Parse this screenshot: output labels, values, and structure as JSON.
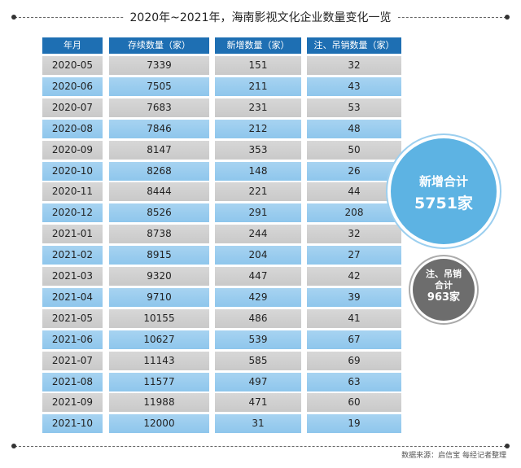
{
  "title": "2020年~2021年，海南影视文化企业数量变化一览",
  "source": "数据来源：启信宝 每经记者整理",
  "headers": {
    "month": "年月",
    "existing": "存续数量（家）",
    "new": "新增数量（家）",
    "cancelled": "注、吊销数量（家）"
  },
  "summary": {
    "new_total_label": "新增合计",
    "new_total_value": "5751家",
    "cancel_total_label_1": "注、吊销",
    "cancel_total_label_2": "合计",
    "cancel_total_value": "963家"
  },
  "colors": {
    "header": "#1e6fb3",
    "row_gray": "#d0d0d0",
    "row_blue": "#9ccbee",
    "circle_blue": "#5db3e3",
    "circle_gray": "#6d6d6d"
  },
  "chart_data": {
    "type": "table",
    "title": "2020年~2021年，海南影视文化企业数量变化一览",
    "columns": [
      "年月",
      "存续数量（家）",
      "新增数量（家）",
      "注、吊销数量（家）"
    ],
    "rows": [
      [
        "2020-05",
        "7339",
        "151",
        "32"
      ],
      [
        "2020-06",
        "7505",
        "211",
        "43"
      ],
      [
        "2020-07",
        "7683",
        "231",
        "53"
      ],
      [
        "2020-08",
        "7846",
        "212",
        "48"
      ],
      [
        "2020-09",
        "8147",
        "353",
        "50"
      ],
      [
        "2020-10",
        "8268",
        "148",
        "26"
      ],
      [
        "2020-11",
        "8444",
        "221",
        "44"
      ],
      [
        "2020-12",
        "8526",
        "291",
        "208"
      ],
      [
        "2021-01",
        "8738",
        "244",
        "32"
      ],
      [
        "2021-02",
        "8915",
        "204",
        "27"
      ],
      [
        "2021-03",
        "9320",
        "447",
        "42"
      ],
      [
        "2021-04",
        "9710",
        "429",
        "39"
      ],
      [
        "2021-05",
        "10155",
        "486",
        "41"
      ],
      [
        "2021-06",
        "10627",
        "539",
        "67"
      ],
      [
        "2021-07",
        "11143",
        "585",
        "69"
      ],
      [
        "2021-08",
        "11577",
        "497",
        "63"
      ],
      [
        "2021-09",
        "11988",
        "471",
        "60"
      ],
      [
        "2021-10",
        "12000",
        "31",
        "19"
      ]
    ]
  }
}
